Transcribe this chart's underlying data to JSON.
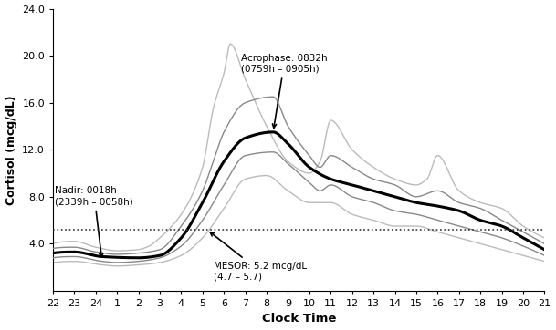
{
  "title": "",
  "xlabel": "Clock Time",
  "ylabel": "Cortisol (mcg/dL)",
  "ylim": [
    0.0,
    24.0
  ],
  "yticks": [
    4.0,
    8.0,
    12.0,
    16.0,
    20.0,
    24.0
  ],
  "xtick_labels": [
    "22",
    "23",
    "24",
    "1",
    "2",
    "3",
    "4",
    "5",
    "6",
    "7",
    "8",
    "9",
    "10",
    "11",
    "12",
    "13",
    "14",
    "15",
    "16",
    "17",
    "18",
    "19",
    "20",
    "21"
  ],
  "mesor": 5.2,
  "mesor_text": "MESOR: 5.2 mcg/dL",
  "mesor_sub": "(4.7 – 5.7)",
  "acrophase_text": "Acrophase: 0832h",
  "acrophase_sub": "(0759h – 0905h)",
  "nadir_text": "Nadir: 0018h",
  "nadir_sub": "(2339h – 0058h)",
  "color_outer": "#bbbbbb",
  "color_inner": "#888888",
  "color_mean": "#000000",
  "background_color": "#ffffff"
}
